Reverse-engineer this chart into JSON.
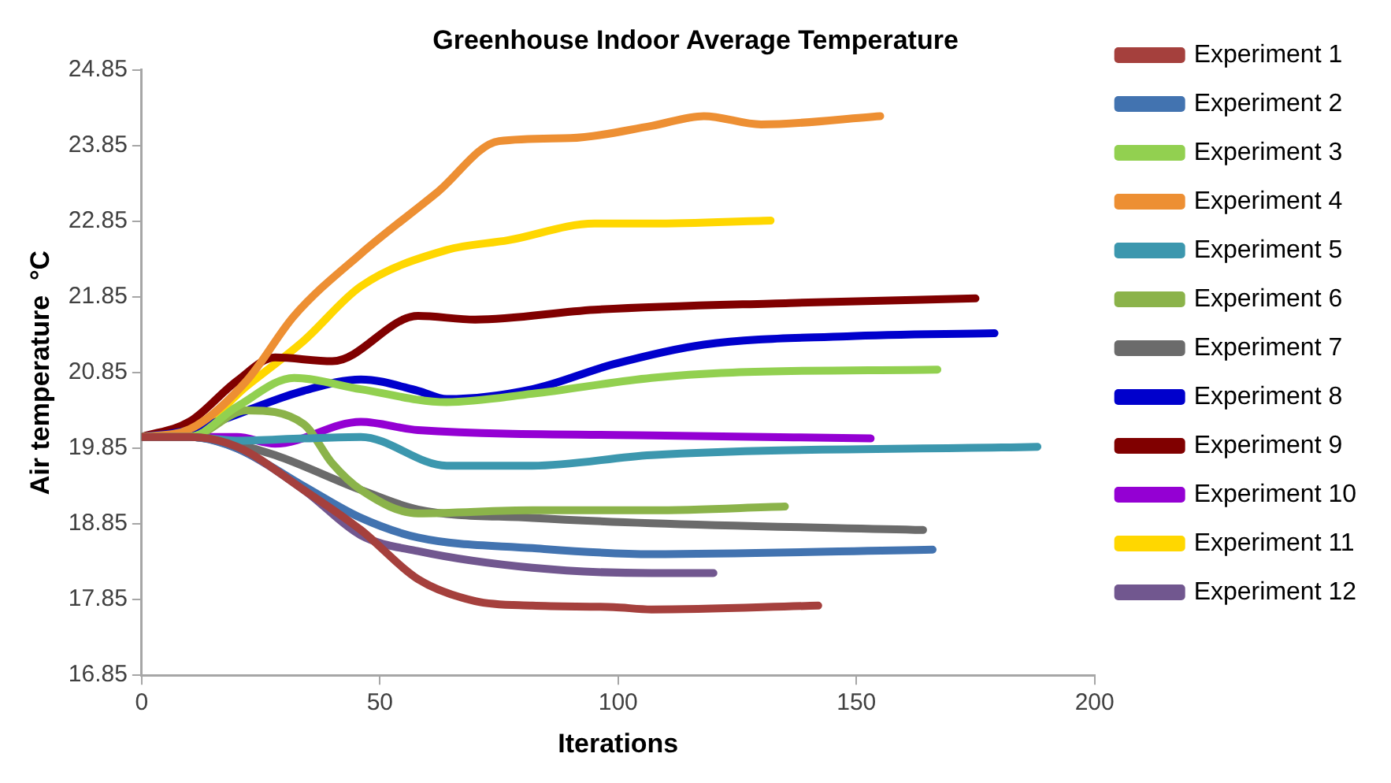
{
  "chart_data": {
    "type": "line",
    "title": "Greenhouse Indoor Average Temperature",
    "xlabel": "Iterations",
    "ylabel": "Air temperature  °C",
    "xlim": [
      0,
      200
    ],
    "xticks": [
      0,
      50,
      100,
      150,
      200
    ],
    "ylim": [
      16.85,
      24.85
    ],
    "yticks": [
      16.85,
      17.85,
      18.85,
      19.85,
      20.85,
      21.85,
      22.85,
      23.85,
      24.85
    ],
    "grid": false,
    "legend": "right",
    "marker": "none",
    "line_style": "solid",
    "series": [
      {
        "name": "Experiment 1",
        "color": "#a5403d",
        "x": [
          0,
          10,
          20,
          34,
          46,
          58,
          70,
          82,
          99,
          107,
          142
        ],
        "values": [
          20.0,
          20.0,
          19.87,
          19.3,
          18.77,
          18.12,
          17.83,
          17.77,
          17.75,
          17.72,
          17.77
        ]
      },
      {
        "name": "Experiment 2",
        "color": "#4273b0",
        "x": [
          0,
          10,
          20,
          34,
          46,
          58,
          82,
          107,
          166
        ],
        "values": [
          20.0,
          20.0,
          19.85,
          19.35,
          18.93,
          18.67,
          18.53,
          18.45,
          18.51
        ]
      },
      {
        "name": "Experiment 3",
        "color": "#92d050",
        "x": [
          0,
          10,
          20,
          32,
          46,
          64,
          82,
          107,
          124,
          167
        ],
        "values": [
          20.0,
          20.0,
          20.4,
          20.78,
          20.63,
          20.46,
          20.57,
          20.78,
          20.85,
          20.89
        ]
      },
      {
        "name": "Experiment 4",
        "color": "#ed8f33",
        "x": [
          0,
          10,
          22,
          32,
          46,
          62,
          75,
          90,
          107,
          118,
          130,
          155
        ],
        "values": [
          20.0,
          20.1,
          20.74,
          21.6,
          22.42,
          23.23,
          23.91,
          23.95,
          24.11,
          24.24,
          24.13,
          24.24
        ]
      },
      {
        "name": "Experiment 5",
        "color": "#3c97ae",
        "x": [
          0,
          10,
          20,
          34,
          46,
          64,
          82,
          107,
          188
        ],
        "values": [
          20.0,
          20.0,
          19.95,
          19.98,
          20.0,
          19.62,
          19.62,
          19.76,
          19.87
        ]
      },
      {
        "name": "Experiment 6",
        "color": "#8bb34a",
        "x": [
          0,
          10,
          22,
          34,
          40,
          46,
          58,
          82,
          107,
          135
        ],
        "values": [
          20.0,
          20.0,
          20.35,
          20.17,
          19.65,
          19.3,
          18.99,
          19.03,
          19.03,
          19.08
        ]
      },
      {
        "name": "Experiment 7",
        "color": "#6b6b6b",
        "x": [
          0,
          10,
          20,
          28,
          46,
          58,
          82,
          107,
          164
        ],
        "values": [
          20.0,
          20.0,
          19.9,
          19.76,
          19.3,
          19.04,
          18.93,
          18.86,
          18.77
        ]
      },
      {
        "name": "Experiment 8",
        "color": "#0000cc",
        "x": [
          0,
          10,
          34,
          46,
          58,
          64,
          82,
          99,
          118,
          148,
          179
        ],
        "values": [
          20.0,
          20.09,
          20.61,
          20.76,
          20.61,
          20.5,
          20.63,
          20.96,
          21.22,
          21.33,
          21.37
        ]
      },
      {
        "name": "Experiment 9",
        "color": "#800000",
        "x": [
          0,
          10,
          20,
          28,
          40,
          58,
          70,
          95,
          136,
          175
        ],
        "values": [
          20.0,
          20.2,
          20.74,
          21.05,
          21.0,
          21.6,
          21.55,
          21.68,
          21.77,
          21.83
        ]
      },
      {
        "name": "Experiment 10",
        "color": "#9400d3",
        "x": [
          0,
          10,
          20,
          28,
          46,
          58,
          107,
          153
        ],
        "values": [
          20.0,
          20.0,
          20.0,
          19.91,
          20.2,
          20.09,
          20.02,
          19.98
        ]
      },
      {
        "name": "Experiment 11",
        "color": "#ffd700",
        "x": [
          0,
          10,
          22,
          34,
          46,
          64,
          77,
          95,
          107,
          132
        ],
        "values": [
          20.0,
          20.05,
          20.67,
          21.27,
          21.99,
          22.47,
          22.6,
          22.82,
          22.82,
          22.86
        ]
      },
      {
        "name": "Experiment 12",
        "color": "#71578f",
        "x": [
          0,
          10,
          20,
          34,
          46,
          58,
          82,
          107,
          120
        ],
        "values": [
          20.0,
          20.0,
          19.85,
          19.3,
          18.7,
          18.49,
          18.27,
          18.2,
          18.2
        ]
      }
    ]
  }
}
